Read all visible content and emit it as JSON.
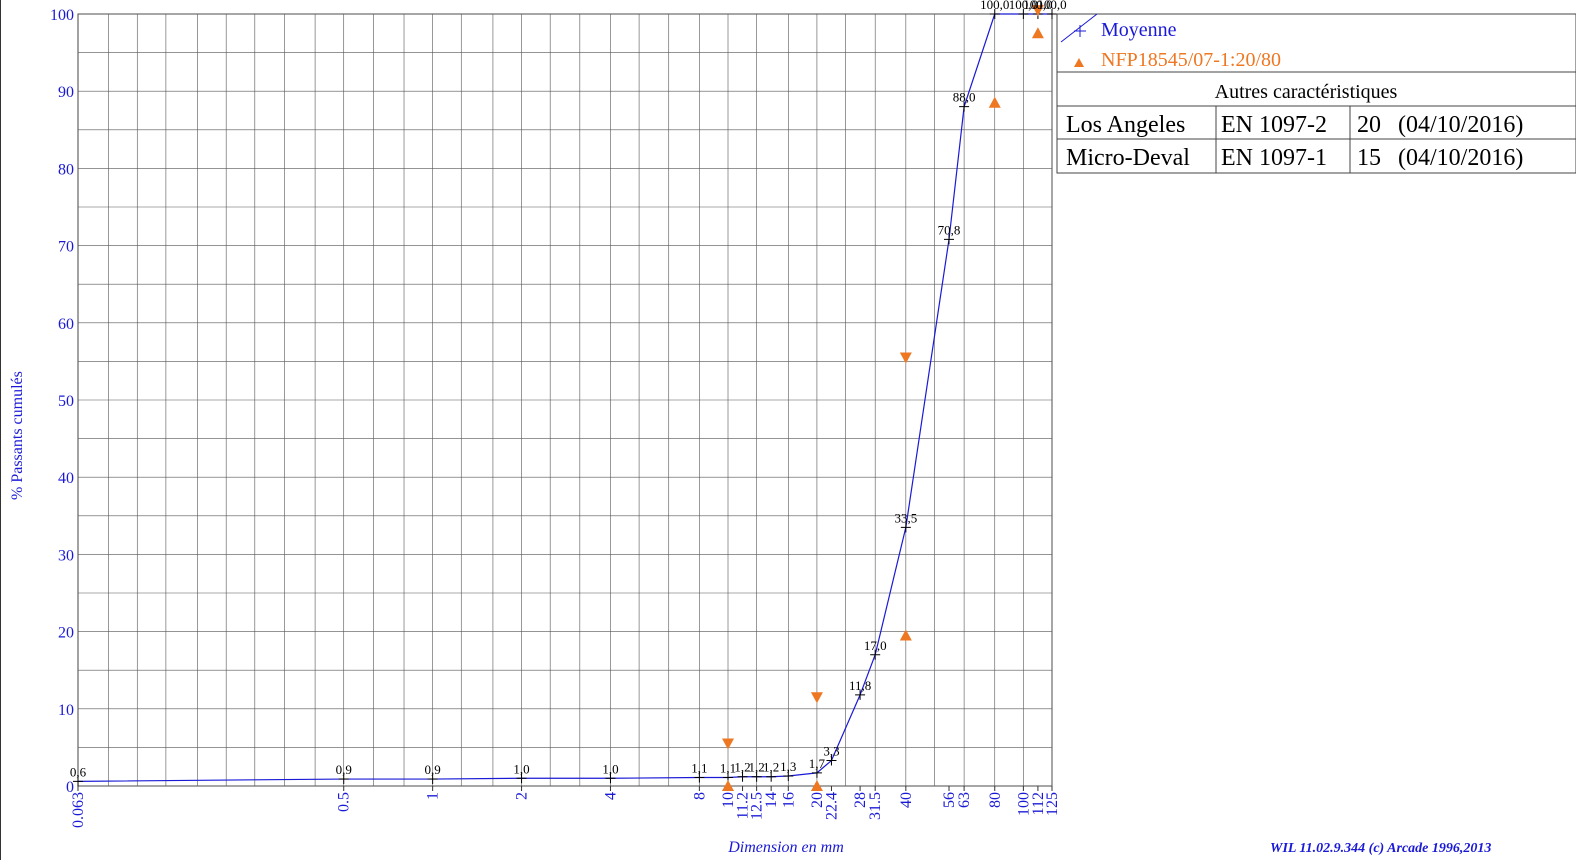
{
  "chart_data": {
    "type": "line",
    "ylabel": "% Passants cumulés",
    "xlabel": "Dimension en mm",
    "x_scale": "log",
    "xlim": [
      0.063,
      125
    ],
    "ylim": [
      0,
      100
    ],
    "y_ticks": [
      0,
      10,
      20,
      30,
      40,
      50,
      60,
      70,
      80,
      90,
      100
    ],
    "x_tick_labels": [
      "0.063",
      "0.5",
      "1",
      "2",
      "4",
      "8",
      "10",
      "11.2",
      "12.5",
      "14",
      "16",
      "20",
      "22.4",
      "28",
      "31.5",
      "40",
      "56",
      "63",
      "80",
      "100",
      "112",
      "125"
    ],
    "series": [
      {
        "name": "Moyenne",
        "color": "#1a1ad6",
        "x": [
          0.063,
          0.5,
          1,
          2,
          4,
          8,
          10,
          11.2,
          12.5,
          14,
          16,
          20,
          22.4,
          28,
          31.5,
          40,
          56,
          63,
          80,
          100,
          112,
          125
        ],
        "y": [
          0.6,
          0.9,
          0.9,
          1.0,
          1.0,
          1.1,
          1.1,
          1.2,
          1.2,
          1.2,
          1.3,
          1.7,
          3.3,
          11.8,
          17.0,
          33.5,
          70.8,
          88.0,
          100.0,
          100.0,
          100.0,
          100.0
        ],
        "labels": [
          "0,6",
          "0,9",
          "0,9",
          "1,0",
          "1,0",
          "1,1",
          "1,1",
          "1,2",
          "1,2",
          "1,2",
          "1,3",
          "1,7",
          "3,3",
          "11,8",
          "17,0",
          "33,5",
          "70,8",
          "88,0",
          "100,0",
          "100,0",
          "100,0",
          "100,0"
        ]
      },
      {
        "name": "NFP18545/07-1:20/80",
        "color": "#ee7722",
        "lower": {
          "x": [
            10,
            20,
            40,
            80,
            112
          ],
          "y": [
            0,
            0,
            19.5,
            88.5,
            97.5
          ]
        },
        "upper": {
          "x": [
            10,
            20,
            40,
            112
          ],
          "y": [
            5.5,
            11.5,
            55.5,
            100.5
          ]
        }
      }
    ],
    "legend": {
      "position": "top-right"
    },
    "grid": true
  },
  "table": {
    "title": "Autres caractéristiques",
    "rows": [
      {
        "name": "Los Angeles",
        "norm": "EN 1097-2",
        "value": "20",
        "date": "(04/10/2016)"
      },
      {
        "name": "Micro-Deval",
        "norm": "EN 1097-1",
        "value": "15",
        "date": "(04/10/2016)"
      }
    ]
  },
  "footer": "WIL 11.02.9.344 (c) Arcade 1996,2013"
}
